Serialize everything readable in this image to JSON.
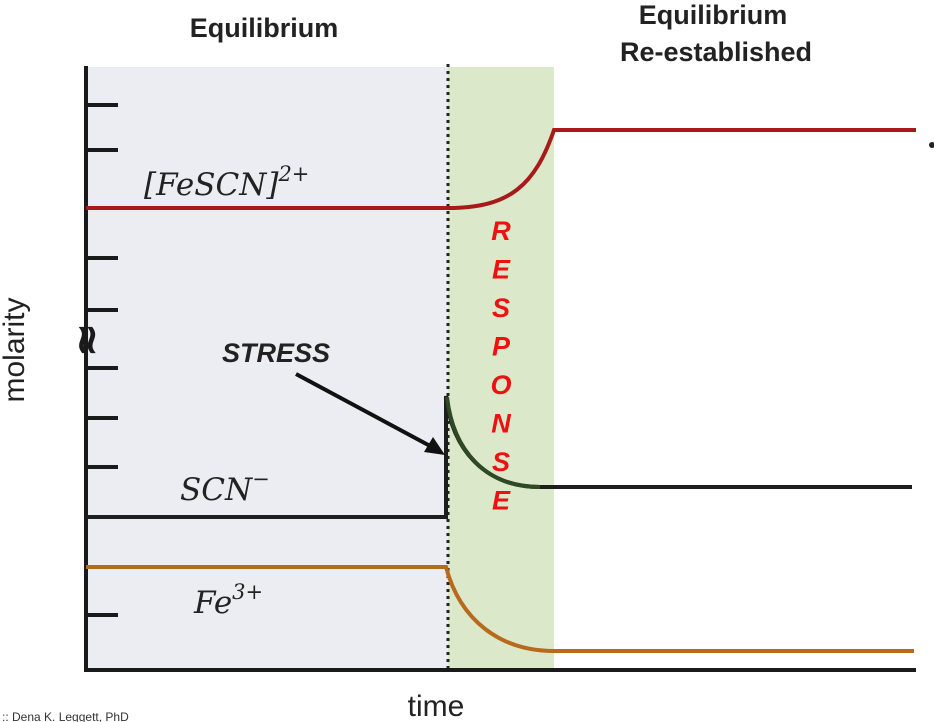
{
  "headers": {
    "equilibrium": "Equilibrium",
    "reestablished_line1": "Equilibrium",
    "reestablished_line2": "Re-established"
  },
  "axes": {
    "y_label": "molarity",
    "x_label": "time",
    "break_symbol": "≈"
  },
  "species": {
    "fescn": {
      "base": "[FeSCN]",
      "sup": "2+",
      "color": "#a81a1a"
    },
    "scn": {
      "base": "SCN",
      "sup": "−",
      "color": "#1e1e1e"
    },
    "fe": {
      "base": "Fe",
      "sup": "3+",
      "color": "#b86a1c"
    }
  },
  "annotations": {
    "stress": "STRESS",
    "response": "RESPONSE"
  },
  "credit": ":: Dena K. Leggett, PhD",
  "colors": {
    "equilibrium_region": "#ececf3",
    "response_region": "#dbe8c9",
    "stress_line": "#222222",
    "response_text": "#ee1111",
    "axis": "#1a1a1a"
  }
}
